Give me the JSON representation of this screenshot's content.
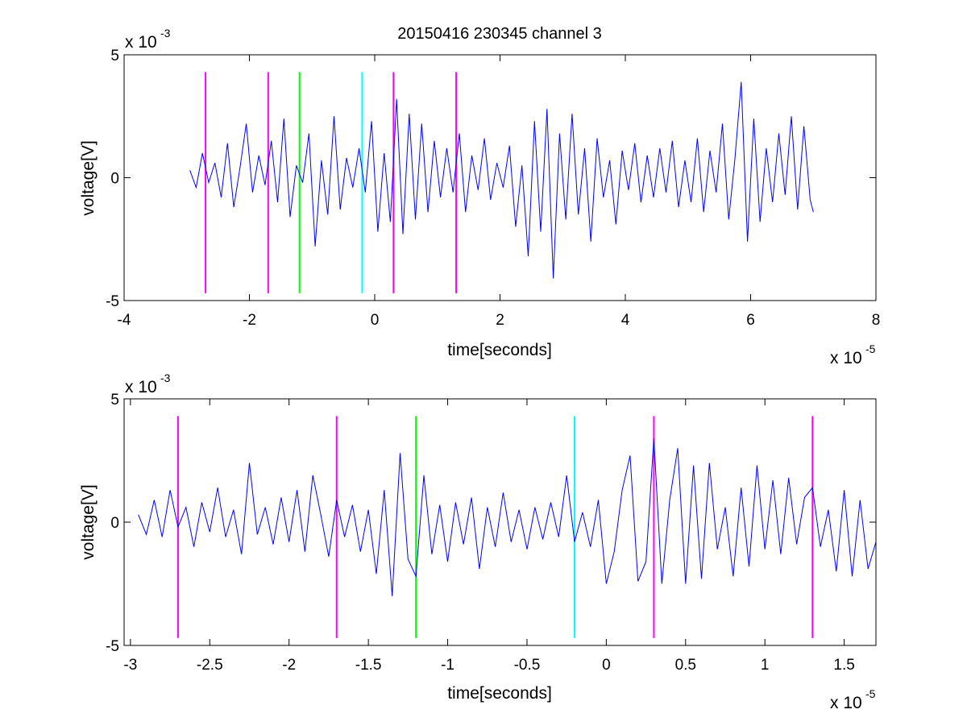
{
  "figure_title": "20150416 230345 channel 3",
  "colors": {
    "signal": "#0000ff",
    "magenta": "#ff00ff",
    "green": "#00ff00",
    "cyan": "#00ffff"
  },
  "chart_data": [
    {
      "type": "line",
      "xlabel": "time[seconds]",
      "ylabel": "voltage[V]",
      "x_exponent_base": "x 10",
      "x_exponent_power": "-5",
      "y_exponent_base": "x 10",
      "y_exponent_power": "-3",
      "xlim": [
        -4,
        8
      ],
      "ylim": [
        -5,
        5
      ],
      "xticks": [
        -4,
        -2,
        0,
        2,
        4,
        6,
        8
      ],
      "xtick_labels": [
        "-4",
        "-2",
        "0",
        "2",
        "4",
        "6",
        "8"
      ],
      "yticks": [
        -5,
        0,
        5
      ],
      "ytick_labels": [
        "-5",
        "0",
        "5"
      ],
      "grid": false,
      "series": [
        {
          "color": "#0000ff",
          "x": [
            -2.95,
            -2.85,
            -2.75,
            -2.65,
            -2.55,
            -2.45,
            -2.35,
            -2.25,
            -2.15,
            -2.05,
            -1.95,
            -1.85,
            -1.75,
            -1.65,
            -1.55,
            -1.45,
            -1.35,
            -1.25,
            -1.15,
            -1.05,
            -0.95,
            -0.85,
            -0.75,
            -0.65,
            -0.55,
            -0.45,
            -0.35,
            -0.25,
            -0.15,
            -0.05,
            0.05,
            0.15,
            0.25,
            0.35,
            0.45,
            0.55,
            0.65,
            0.75,
            0.85,
            0.95,
            1.05,
            1.15,
            1.25,
            1.35,
            1.45,
            1.55,
            1.65,
            1.75,
            1.85,
            1.95,
            2.05,
            2.15,
            2.25,
            2.35,
            2.45,
            2.55,
            2.65,
            2.75,
            2.85,
            2.95,
            3.05,
            3.15,
            3.25,
            3.35,
            3.45,
            3.55,
            3.65,
            3.75,
            3.85,
            3.95,
            4.05,
            4.15,
            4.25,
            4.35,
            4.45,
            4.55,
            4.65,
            4.75,
            4.85,
            4.95,
            5.05,
            5.15,
            5.25,
            5.35,
            5.45,
            5.55,
            5.65,
            5.75,
            5.85,
            5.95,
            6.05,
            6.15,
            6.25,
            6.35,
            6.45,
            6.55,
            6.65,
            6.75,
            6.85,
            6.95,
            7.0
          ],
          "y": [
            0.3,
            -0.4,
            1.0,
            -0.2,
            0.6,
            -0.8,
            1.4,
            -1.2,
            0.4,
            2.2,
            -0.6,
            0.9,
            -0.3,
            1.5,
            -1.0,
            2.4,
            -1.6,
            0.5,
            -0.2,
            1.8,
            -2.8,
            0.7,
            -1.5,
            2.5,
            -1.3,
            0.8,
            -0.4,
            1.2,
            -0.6,
            2.3,
            -2.2,
            1.0,
            -1.8,
            3.2,
            -2.3,
            2.6,
            -1.7,
            2.2,
            -1.4,
            1.5,
            -0.8,
            1.2,
            -0.6,
            1.8,
            -1.4,
            0.9,
            -0.5,
            1.6,
            -0.9,
            0.6,
            -0.4,
            1.3,
            -2.0,
            0.5,
            -3.2,
            2.3,
            -2.2,
            2.8,
            -4.1,
            1.8,
            -1.7,
            2.6,
            -1.5,
            1.2,
            -2.6,
            1.6,
            -0.8,
            0.7,
            -1.9,
            1.1,
            -0.5,
            1.4,
            -1.0,
            0.9,
            -0.8,
            1.2,
            -0.6,
            1.5,
            -1.2,
            0.7,
            -1.0,
            1.6,
            -1.4,
            1.1,
            -0.6,
            2.2,
            -1.7,
            0.8,
            3.9,
            -2.6,
            2.4,
            -1.8,
            1.2,
            -1.0,
            1.8,
            -0.7,
            2.5,
            -1.3,
            2.1,
            -0.9,
            -1.4
          ]
        }
      ],
      "vertical_markers": [
        {
          "x": -2.7,
          "color": "#ff00ff"
        },
        {
          "x": -1.7,
          "color": "#ff00ff"
        },
        {
          "x": -1.2,
          "color": "#00ff00"
        },
        {
          "x": -0.2,
          "color": "#00ffff"
        },
        {
          "x": 0.3,
          "color": "#ff00ff"
        },
        {
          "x": 1.3,
          "color": "#ff00ff"
        }
      ],
      "marker_y_range": [
        -4.7,
        4.3
      ]
    },
    {
      "type": "line",
      "xlabel": "time[seconds]",
      "ylabel": "voltage[V]",
      "x_exponent_base": "x 10",
      "x_exponent_power": "-5",
      "y_exponent_base": "x 10",
      "y_exponent_power": "-3",
      "xlim": [
        -3.04,
        1.7
      ],
      "ylim": [
        -5,
        5
      ],
      "xticks": [
        -3,
        -2.5,
        -2,
        -1.5,
        -1,
        -0.5,
        0,
        0.5,
        1,
        1.5
      ],
      "xtick_labels": [
        "-3",
        "-2.5",
        "-2",
        "-1.5",
        "-1",
        "-0.5",
        "0",
        "0.5",
        "1",
        "1.5"
      ],
      "yticks": [
        -5,
        0,
        5
      ],
      "ytick_labels": [
        "-5",
        "0",
        "5"
      ],
      "grid": false,
      "series": [
        {
          "color": "#0000ff",
          "x": [
            -2.95,
            -2.9,
            -2.85,
            -2.8,
            -2.75,
            -2.7,
            -2.65,
            -2.6,
            -2.55,
            -2.5,
            -2.45,
            -2.4,
            -2.35,
            -2.3,
            -2.25,
            -2.2,
            -2.15,
            -2.1,
            -2.05,
            -2.0,
            -1.95,
            -1.9,
            -1.85,
            -1.8,
            -1.75,
            -1.7,
            -1.65,
            -1.6,
            -1.55,
            -1.5,
            -1.45,
            -1.4,
            -1.35,
            -1.3,
            -1.25,
            -1.2,
            -1.15,
            -1.1,
            -1.05,
            -1.0,
            -0.95,
            -0.9,
            -0.85,
            -0.8,
            -0.75,
            -0.7,
            -0.65,
            -0.6,
            -0.55,
            -0.5,
            -0.45,
            -0.4,
            -0.35,
            -0.3,
            -0.25,
            -0.2,
            -0.15,
            -0.1,
            -0.05,
            0.0,
            0.05,
            0.1,
            0.15,
            0.2,
            0.25,
            0.3,
            0.35,
            0.4,
            0.45,
            0.5,
            0.55,
            0.6,
            0.65,
            0.7,
            0.75,
            0.8,
            0.85,
            0.9,
            0.95,
            1.0,
            1.05,
            1.1,
            1.15,
            1.2,
            1.25,
            1.3,
            1.35,
            1.4,
            1.45,
            1.5,
            1.55,
            1.6,
            1.65,
            1.7
          ],
          "y": [
            0.3,
            -0.5,
            0.9,
            -0.6,
            1.3,
            -0.2,
            0.6,
            -1.0,
            0.8,
            -0.4,
            1.4,
            -0.6,
            0.5,
            -1.3,
            2.4,
            -0.5,
            0.6,
            -0.9,
            1.0,
            -0.8,
            1.3,
            -1.2,
            1.9,
            0.3,
            -1.4,
            0.9,
            -0.6,
            0.7,
            -1.2,
            0.5,
            -2.1,
            1.3,
            -3.0,
            2.8,
            -1.5,
            -2.2,
            1.9,
            -1.3,
            0.7,
            -1.6,
            0.8,
            -0.9,
            1.0,
            -1.9,
            0.6,
            -1.0,
            1.2,
            -0.8,
            0.5,
            -1.1,
            0.6,
            -0.7,
            0.8,
            -0.6,
            1.9,
            -0.8,
            0.4,
            -1.0,
            0.9,
            -2.5,
            -1.2,
            1.3,
            2.7,
            -2.4,
            -1.6,
            3.4,
            -2.5,
            0.9,
            3.0,
            -2.5,
            2.3,
            -2.3,
            2.4,
            -1.1,
            0.6,
            -2.2,
            1.4,
            -1.8,
            2.3,
            -1.1,
            1.7,
            -1.3,
            1.8,
            -0.9,
            1.0,
            1.4,
            -1.0,
            0.5,
            -2.0,
            1.3,
            -2.2,
            0.9,
            -1.9,
            -0.8
          ]
        }
      ],
      "vertical_markers": [
        {
          "x": -2.7,
          "color": "#ff00ff"
        },
        {
          "x": -1.7,
          "color": "#ff00ff"
        },
        {
          "x": -1.2,
          "color": "#00ff00"
        },
        {
          "x": -0.2,
          "color": "#00ffff"
        },
        {
          "x": 0.3,
          "color": "#ff00ff"
        },
        {
          "x": 1.3,
          "color": "#ff00ff"
        }
      ],
      "marker_y_range": [
        -4.7,
        4.3
      ]
    }
  ]
}
